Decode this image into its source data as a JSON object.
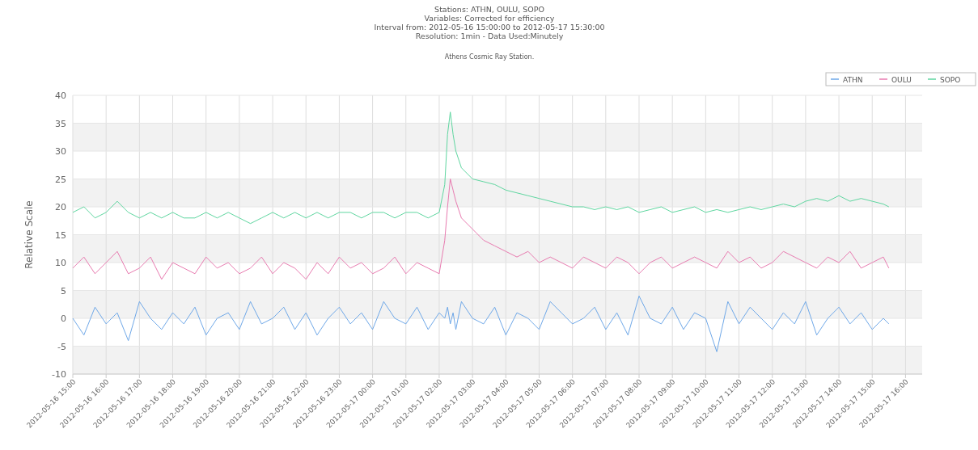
{
  "chart_data": {
    "type": "line",
    "title": "Stations: ATHN, OULU, SOPO\nVariables: Corrected for efficiency\nInterval from: 2012-05-16 15:00:00 to 2012-05-17 15:30:00\nResolution: 1min - Data Used:Minutely",
    "subtitle": "Athens Cosmic Ray Station.",
    "ylabel": "Relative Scale",
    "x": [
      "2012-05-16T15:00",
      "2012-05-16T15:20",
      "2012-05-16T15:40",
      "2012-05-16T16:00",
      "2012-05-16T16:20",
      "2012-05-16T16:40",
      "2012-05-16T17:00",
      "2012-05-16T17:20",
      "2012-05-16T17:40",
      "2012-05-16T18:00",
      "2012-05-16T18:20",
      "2012-05-16T18:40",
      "2012-05-16T19:00",
      "2012-05-16T19:20",
      "2012-05-16T19:40",
      "2012-05-16T20:00",
      "2012-05-16T20:20",
      "2012-05-16T20:40",
      "2012-05-16T21:00",
      "2012-05-16T21:20",
      "2012-05-16T21:40",
      "2012-05-16T22:00",
      "2012-05-16T22:20",
      "2012-05-16T22:40",
      "2012-05-16T23:00",
      "2012-05-16T23:20",
      "2012-05-16T23:40",
      "2012-05-17T00:00",
      "2012-05-17T00:20",
      "2012-05-17T00:40",
      "2012-05-17T01:00",
      "2012-05-17T01:20",
      "2012-05-17T01:40",
      "2012-05-17T02:00",
      "2012-05-17T02:10",
      "2012-05-17T02:15",
      "2012-05-17T02:20",
      "2012-05-17T02:25",
      "2012-05-17T02:30",
      "2012-05-17T02:40",
      "2012-05-17T03:00",
      "2012-05-17T03:20",
      "2012-05-17T03:40",
      "2012-05-17T04:00",
      "2012-05-17T04:20",
      "2012-05-17T04:40",
      "2012-05-17T05:00",
      "2012-05-17T05:20",
      "2012-05-17T05:40",
      "2012-05-17T06:00",
      "2012-05-17T06:20",
      "2012-05-17T06:40",
      "2012-05-17T07:00",
      "2012-05-17T07:20",
      "2012-05-17T07:40",
      "2012-05-17T08:00",
      "2012-05-17T08:20",
      "2012-05-17T08:40",
      "2012-05-17T09:00",
      "2012-05-17T09:20",
      "2012-05-17T09:40",
      "2012-05-17T10:00",
      "2012-05-17T10:20",
      "2012-05-17T10:40",
      "2012-05-17T11:00",
      "2012-05-17T11:20",
      "2012-05-17T11:40",
      "2012-05-17T12:00",
      "2012-05-17T12:20",
      "2012-05-17T12:40",
      "2012-05-17T13:00",
      "2012-05-17T13:20",
      "2012-05-17T13:40",
      "2012-05-17T14:00",
      "2012-05-17T14:20",
      "2012-05-17T14:40",
      "2012-05-17T15:00",
      "2012-05-17T15:20",
      "2012-05-17T15:30"
    ],
    "series": [
      {
        "name": "ATHN",
        "color": "#6fa8e8",
        "values": [
          0,
          -3,
          2,
          -1,
          1,
          -4,
          3,
          0,
          -2,
          1,
          -1,
          2,
          -3,
          0,
          1,
          -2,
          3,
          -1,
          0,
          2,
          -2,
          1,
          -3,
          0,
          2,
          -1,
          1,
          -2,
          3,
          0,
          -1,
          2,
          -2,
          1,
          0,
          2,
          -1,
          1,
          -2,
          3,
          0,
          -1,
          2,
          -3,
          1,
          0,
          -2,
          3,
          1,
          -1,
          0,
          2,
          -2,
          1,
          -3,
          4,
          0,
          -1,
          2,
          -2,
          1,
          0,
          -6,
          3,
          -1,
          2,
          0,
          -2,
          1,
          -1,
          3,
          -3,
          0,
          2,
          -1,
          1,
          -2,
          0,
          -1
        ]
      },
      {
        "name": "OULU",
        "color": "#e87bb0",
        "values": [
          9,
          11,
          8,
          10,
          12,
          8,
          9,
          11,
          7,
          10,
          9,
          8,
          11,
          9,
          10,
          8,
          9,
          11,
          8,
          10,
          9,
          7,
          10,
          8,
          11,
          9,
          10,
          8,
          9,
          11,
          8,
          10,
          9,
          8,
          14,
          20,
          25,
          23,
          21,
          18,
          16,
          14,
          13,
          12,
          11,
          12,
          10,
          11,
          10,
          9,
          11,
          10,
          9,
          11,
          10,
          8,
          10,
          11,
          9,
          10,
          11,
          10,
          9,
          12,
          10,
          11,
          9,
          10,
          12,
          11,
          10,
          9,
          11,
          10,
          12,
          9,
          10,
          11,
          9
        ]
      },
      {
        "name": "SOPO",
        "color": "#5fd6a0",
        "values": [
          19,
          20,
          18,
          19,
          21,
          19,
          18,
          19,
          18,
          19,
          18,
          18,
          19,
          18,
          19,
          18,
          17,
          18,
          19,
          18,
          19,
          18,
          19,
          18,
          19,
          19,
          18,
          19,
          19,
          18,
          19,
          19,
          18,
          19,
          24,
          33,
          37,
          33,
          30,
          27,
          25,
          24.5,
          24,
          23,
          22.5,
          22,
          21.5,
          21,
          20.5,
          20,
          20,
          19.5,
          20,
          19.5,
          20,
          19,
          19.5,
          20,
          19,
          19.5,
          20,
          19,
          19.5,
          19,
          19.5,
          20,
          19.5,
          20,
          20.5,
          20,
          21,
          21.5,
          21,
          22,
          21,
          21.5,
          21,
          20.5,
          20
        ]
      }
    ],
    "xlim": [
      "2012-05-16T15:00",
      "2012-05-17T16:30"
    ],
    "xticks": [
      {
        "value": "2012-05-16T15:00",
        "label": "2012-05-16 15:00"
      },
      {
        "value": "2012-05-16T16:00",
        "label": "2012-05-16 16:00"
      },
      {
        "value": "2012-05-16T17:00",
        "label": "2012-05-16 17:00"
      },
      {
        "value": "2012-05-16T18:00",
        "label": "2012-05-16 18:00"
      },
      {
        "value": "2012-05-16T19:00",
        "label": "2012-05-16 19:00"
      },
      {
        "value": "2012-05-16T20:00",
        "label": "2012-05-16 20:00"
      },
      {
        "value": "2012-05-16T21:00",
        "label": "2012-05-16 21:00"
      },
      {
        "value": "2012-05-16T22:00",
        "label": "2012-05-16 22:00"
      },
      {
        "value": "2012-05-16T23:00",
        "label": "2012-05-16 23:00"
      },
      {
        "value": "2012-05-17T00:00",
        "label": "2012-05-17 00:00"
      },
      {
        "value": "2012-05-17T01:00",
        "label": "2012-05-17 01:00"
      },
      {
        "value": "2012-05-17T02:00",
        "label": "2012-05-17 02:00"
      },
      {
        "value": "2012-05-17T03:00",
        "label": "2012-05-17 03:00"
      },
      {
        "value": "2012-05-17T04:00",
        "label": "2012-05-17 04:00"
      },
      {
        "value": "2012-05-17T05:00",
        "label": "2012-05-17 05:00"
      },
      {
        "value": "2012-05-17T06:00",
        "label": "2012-05-17 06:00"
      },
      {
        "value": "2012-05-17T07:00",
        "label": "2012-05-17 07:00"
      },
      {
        "value": "2012-05-17T08:00",
        "label": "2012-05-17 08:00"
      },
      {
        "value": "2012-05-17T09:00",
        "label": "2012-05-17 09:00"
      },
      {
        "value": "2012-05-17T10:00",
        "label": "2012-05-17 10:00"
      },
      {
        "value": "2012-05-17T11:00",
        "label": "2012-05-17 11:00"
      },
      {
        "value": "2012-05-17T12:00",
        "label": "2012-05-17 12:00"
      },
      {
        "value": "2012-05-17T13:00",
        "label": "2012-05-17 13:00"
      },
      {
        "value": "2012-05-17T14:00",
        "label": "2012-05-17 14:00"
      },
      {
        "value": "2012-05-17T15:00",
        "label": "2012-05-17 15:00"
      },
      {
        "value": "2012-05-17T16:00",
        "label": "2012-05-17 16:00"
      }
    ],
    "ylim": [
      -10,
      40
    ],
    "yticks": [
      -10,
      -5,
      0,
      5,
      10,
      15,
      20,
      25,
      30,
      35,
      40
    ],
    "grid": true,
    "legend": "top right",
    "marker": "none",
    "line_style": "solid"
  }
}
